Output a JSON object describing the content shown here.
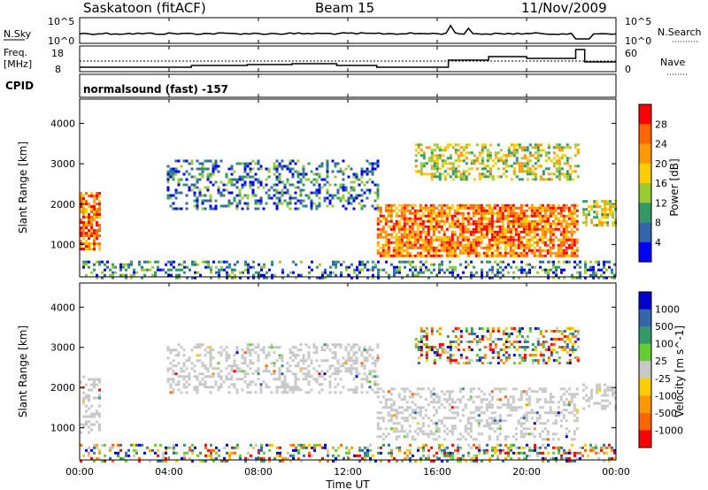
{
  "header": {
    "station": "Saskatoon (fitACF)",
    "beam": "Beam 15",
    "date": "11/Nov/2009"
  },
  "noise_panel": {
    "left_label": "N.Sky",
    "right_label": "N.Search",
    "tick_top": "10^5",
    "tick_bottom": "10^0"
  },
  "freq_panel": {
    "left_label_top": "Freq.",
    "left_label_bottom": "[MHz]",
    "right_label": "Nave",
    "left_ticks": [
      "18",
      "8"
    ],
    "right_ticks": [
      "60",
      "0"
    ]
  },
  "cpid": {
    "label": "CPID",
    "value": "normalsound (fast) -157"
  },
  "chart_data": [
    {
      "type": "heatmap",
      "name": "power",
      "ylabel": "Slant Range [km]",
      "ylim": [
        200,
        4600
      ],
      "yticks": [
        "1000",
        "2000",
        "3000",
        "4000"
      ],
      "xlim": [
        0,
        24
      ],
      "colorbar": {
        "label": "Power [dB]",
        "ticks": [
          "28",
          "24",
          "20",
          "16",
          "12",
          "8",
          "4"
        ],
        "colors": [
          "#ff0000",
          "#ff6600",
          "#ff9900",
          "#ffcc00",
          "#99cc33",
          "#339966",
          "#3366aa",
          "#0000ff"
        ]
      },
      "bands": [
        {
          "x": [
            0,
            0.9
          ],
          "y": [
            900,
            2300
          ],
          "level": "high"
        },
        {
          "x": [
            3.9,
            13.3
          ],
          "y": [
            1900,
            3100
          ],
          "level": "low"
        },
        {
          "x": [
            13.3,
            22.3
          ],
          "y": [
            700,
            2000
          ],
          "level": "high"
        },
        {
          "x": [
            15.0,
            22.3
          ],
          "y": [
            2600,
            3500
          ],
          "level": "mid"
        },
        {
          "x": [
            22.5,
            24
          ],
          "y": [
            1500,
            2100
          ],
          "level": "mid"
        },
        {
          "x": [
            0,
            24
          ],
          "y": [
            200,
            600
          ],
          "level": "low"
        }
      ]
    },
    {
      "type": "heatmap",
      "name": "velocity",
      "ylabel": "Slant Range [km]",
      "ylim": [
        200,
        4600
      ],
      "yticks": [
        "1000",
        "2000",
        "3000",
        "4000"
      ],
      "xlim": [
        0,
        24
      ],
      "colorbar": {
        "label": "Velocity [m s^-1]",
        "ticks": [
          "1000",
          "500",
          "100",
          "25",
          "-25",
          "-100",
          "-500",
          "-1000"
        ],
        "colors": [
          "#0000cc",
          "#3366aa",
          "#339966",
          "#66cc33",
          "#c8c8c8",
          "#ffcc00",
          "#ff9900",
          "#ff6600",
          "#ff0000"
        ]
      },
      "bands": [
        {
          "x": [
            0,
            0.9
          ],
          "y": [
            900,
            2300
          ],
          "level": "ground"
        },
        {
          "x": [
            3.9,
            13.3
          ],
          "y": [
            1900,
            3100
          ],
          "level": "ground"
        },
        {
          "x": [
            13.3,
            22.3
          ],
          "y": [
            700,
            2000
          ],
          "level": "ground"
        },
        {
          "x": [
            15.0,
            22.3
          ],
          "y": [
            2600,
            3500
          ],
          "level": "mixed"
        },
        {
          "x": [
            22.5,
            24
          ],
          "y": [
            1500,
            2100
          ],
          "level": "ground"
        },
        {
          "x": [
            0,
            24
          ],
          "y": [
            200,
            600
          ],
          "level": "mixed"
        }
      ]
    }
  ],
  "x_axis": {
    "ticks": [
      "00:00",
      "04:00",
      "08:00",
      "12:00",
      "16:00",
      "20:00",
      "00:00"
    ],
    "label": "Time UT"
  }
}
